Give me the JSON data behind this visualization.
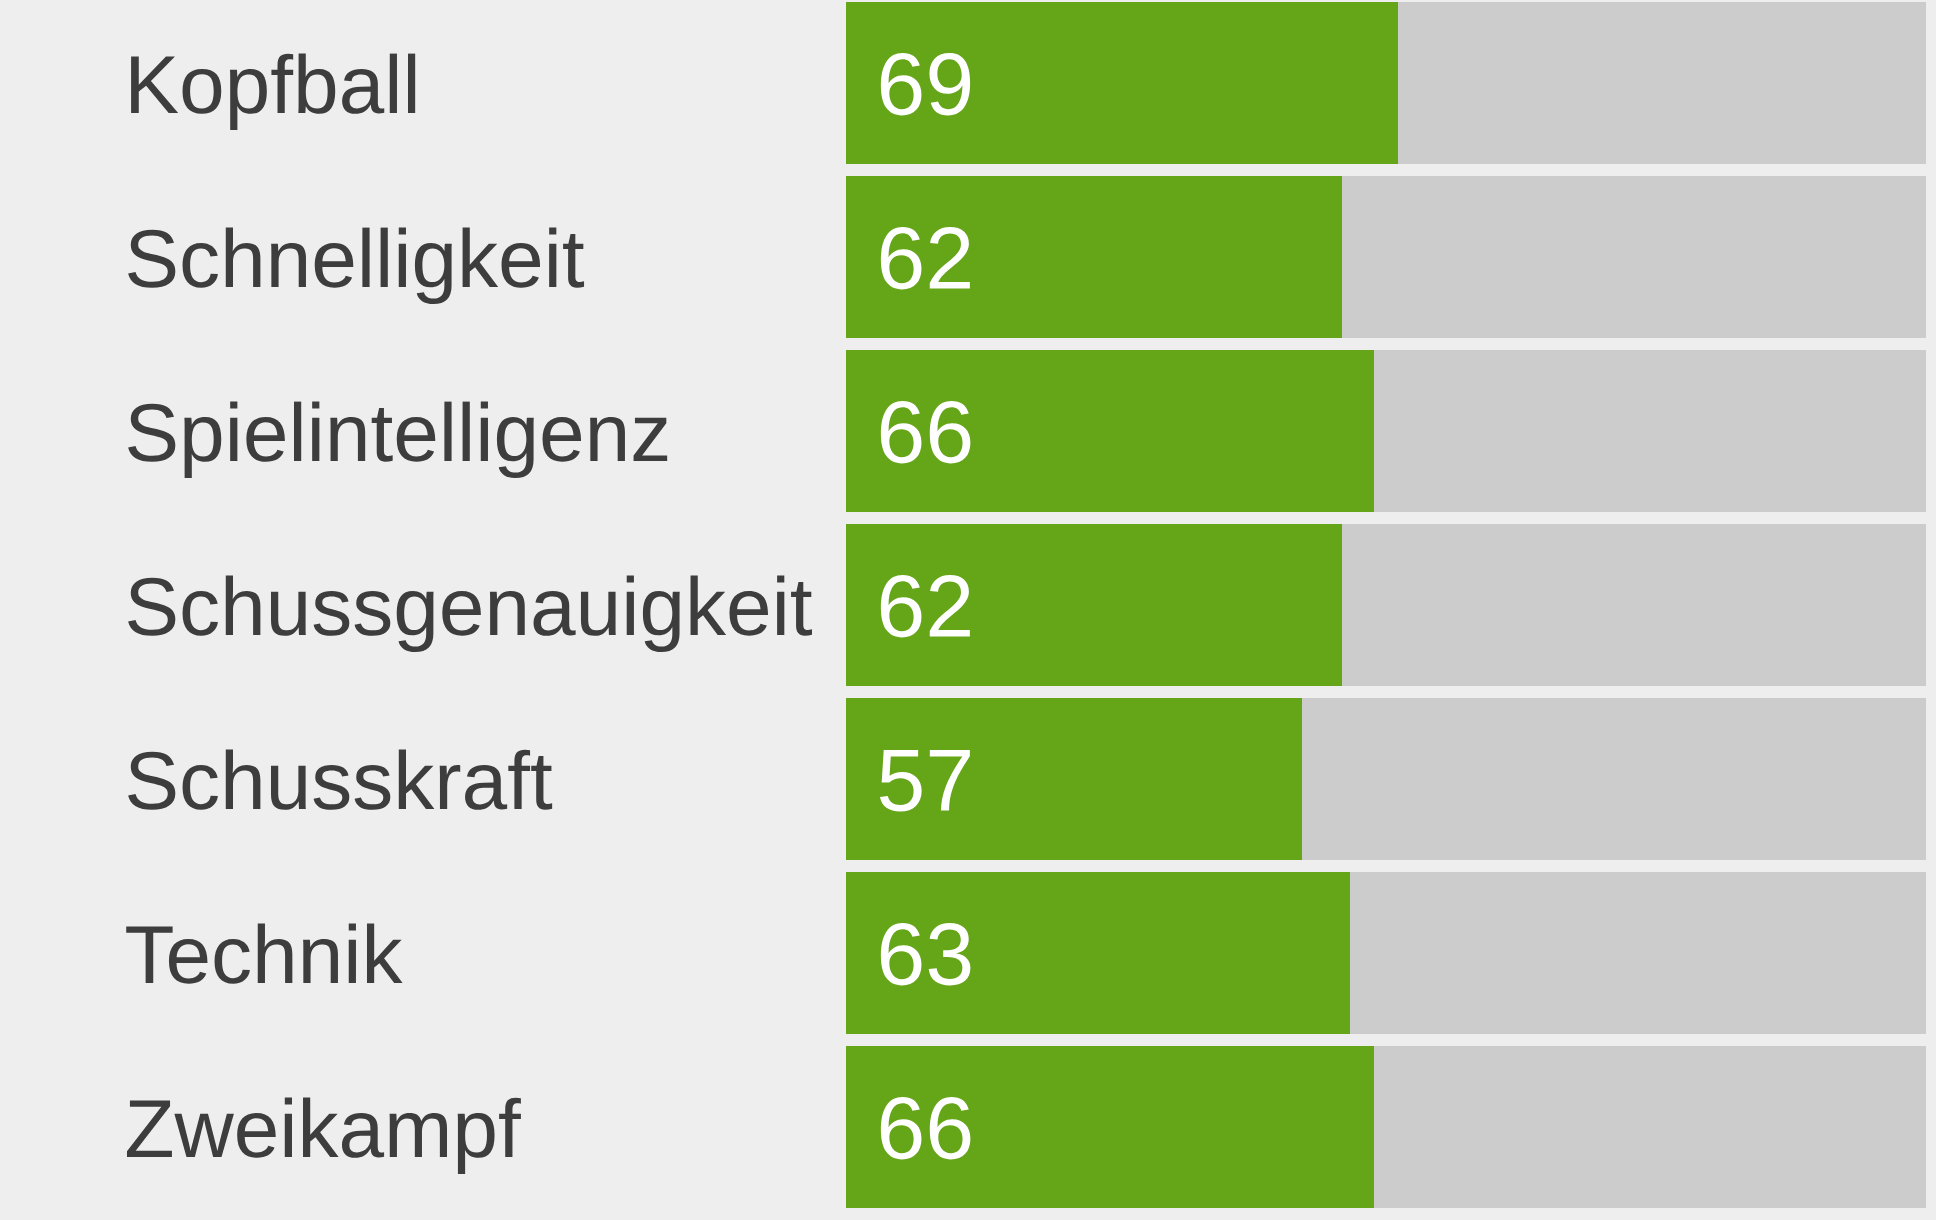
{
  "chart_data": {
    "type": "bar",
    "orientation": "horizontal",
    "categories": [
      "Kopfball",
      "Schnelligkeit",
      "Spielintelligenz",
      "Schussgenauigkeit",
      "Schusskraft",
      "Technik",
      "Zweikampf"
    ],
    "values": [
      69,
      62,
      66,
      62,
      57,
      63,
      66
    ],
    "color": "#65a518",
    "xlim": [
      0,
      135
    ],
    "data_labels": true,
    "tick_labels": "y"
  }
}
